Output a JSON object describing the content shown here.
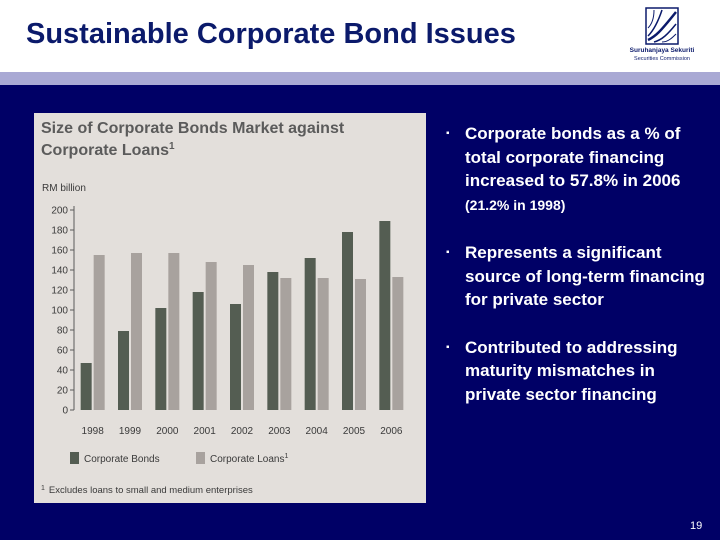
{
  "slide": {
    "title": "Sustainable Corporate Bond Issues",
    "page_number": "19",
    "logo": {
      "name": "Suruhanjaya Sekuriti",
      "subtitle": "Securities Commission"
    },
    "bullets": [
      {
        "text": "Corporate bonds as a % of total corporate financing increased to 57.8% in 2006 ",
        "small_text": "(21.2% in 1998)"
      },
      {
        "text": "Represents a significant source of long-term financing for private sector",
        "small_text": ""
      },
      {
        "text": "Contributed to addressing maturity mismatches in private sector financing",
        "small_text": ""
      }
    ]
  },
  "chart_data": {
    "type": "bar",
    "title_line1": "Size of Corporate Bonds Market against",
    "title_line2": "Corporate Loans",
    "title_superscript": "1",
    "unit_label": "RM billion",
    "categories": [
      "1998",
      "1999",
      "2000",
      "2001",
      "2002",
      "2003",
      "2004",
      "2005",
      "2006"
    ],
    "series": [
      {
        "name": "Corporate Bonds",
        "name_superscript": "",
        "color": "#545d52",
        "values": [
          47,
          79,
          102,
          118,
          106,
          138,
          152,
          178,
          189
        ]
      },
      {
        "name": "Corporate Loans",
        "name_superscript": "1",
        "color": "#a8a29e",
        "values": [
          155,
          157,
          157,
          148,
          145,
          132,
          132,
          131,
          133
        ]
      }
    ],
    "yticks": [
      0,
      20,
      40,
      60,
      80,
      100,
      120,
      140,
      160,
      180,
      200
    ],
    "ylim": [
      0,
      200
    ],
    "legend_position": "bottom",
    "footnote_marker": "1",
    "footnote": "Excludes loans to small and medium enterprises"
  }
}
